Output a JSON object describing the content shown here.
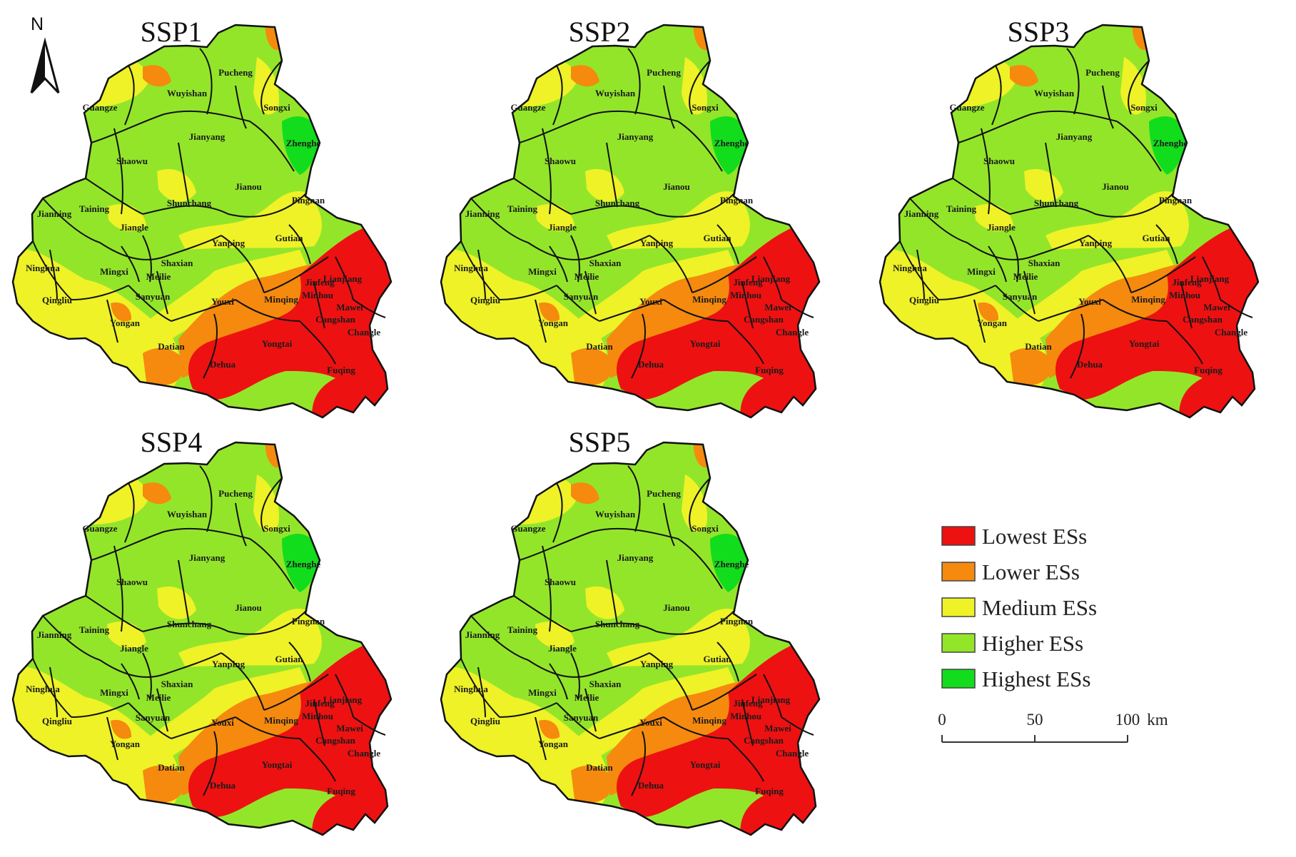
{
  "north_arrow_label": "N",
  "colors": {
    "lowest": "#ee1111",
    "lower": "#f58a0e",
    "medium": "#eef227",
    "higher": "#93e52a",
    "highest": "#12dd1c",
    "boundary": "#111111"
  },
  "legend": [
    {
      "key": "lowest",
      "label": "Lowest ESs"
    },
    {
      "key": "lower",
      "label": "Lower ESs"
    },
    {
      "key": "medium",
      "label": "Medium ESs"
    },
    {
      "key": "higher",
      "label": "Higher ESs"
    },
    {
      "key": "highest",
      "label": "Highest ESs"
    }
  ],
  "scale_bar": {
    "ticks": [
      "0",
      "50",
      "100"
    ],
    "unit": "km"
  },
  "panels": [
    {
      "title": "SSP1"
    },
    {
      "title": "SSP2"
    },
    {
      "title": "SSP3"
    },
    {
      "title": "SSP4"
    },
    {
      "title": "SSP5"
    }
  ],
  "counties": [
    {
      "name": "Pucheng"
    },
    {
      "name": "Wuyishan"
    },
    {
      "name": "Songxi"
    },
    {
      "name": "Guangze"
    },
    {
      "name": "Jianyang"
    },
    {
      "name": "Zhenghe"
    },
    {
      "name": "Shaowu"
    },
    {
      "name": "Jianou"
    },
    {
      "name": "Pingnan"
    },
    {
      "name": "Jianning"
    },
    {
      "name": "Taining"
    },
    {
      "name": "Shunchang"
    },
    {
      "name": "Jiangle"
    },
    {
      "name": "Gutian"
    },
    {
      "name": "Yanping"
    },
    {
      "name": "Ninghua"
    },
    {
      "name": "Mingxi"
    },
    {
      "name": "Shaxian"
    },
    {
      "name": "Lianjiang"
    },
    {
      "name": "Jinfeng"
    },
    {
      "name": "Qingliu"
    },
    {
      "name": "Meilie"
    },
    {
      "name": "Youxi"
    },
    {
      "name": "Minqing"
    },
    {
      "name": "Minhou"
    },
    {
      "name": "Sanyuan"
    },
    {
      "name": "Cangshan"
    },
    {
      "name": "Mawei"
    },
    {
      "name": "Yongan"
    },
    {
      "name": "Changle"
    },
    {
      "name": "Yongtai"
    },
    {
      "name": "Datian"
    },
    {
      "name": "Dehua"
    },
    {
      "name": "Fuqing"
    }
  ]
}
